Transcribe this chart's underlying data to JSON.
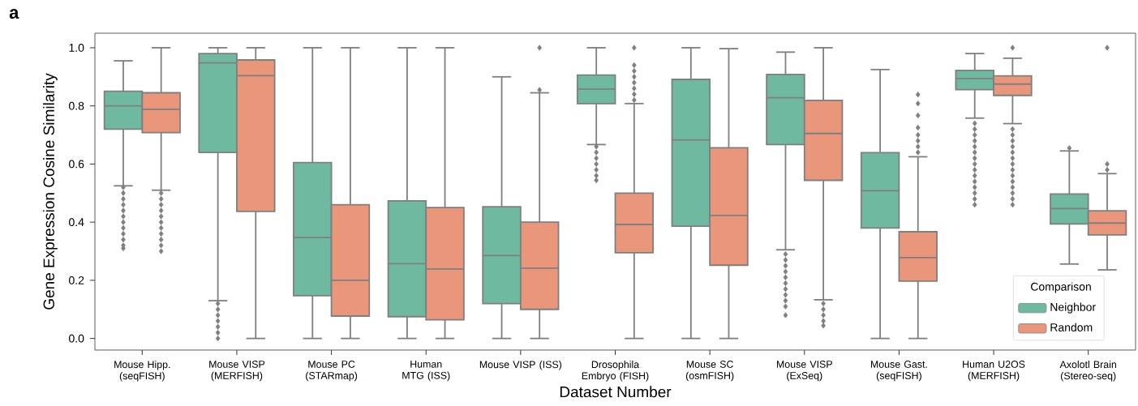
{
  "chart_data": {
    "type": "box",
    "xlabel": "Dataset Number",
    "ylabel": "Gene Expression Cosine Similarity",
    "annotations": [
      "a"
    ],
    "legend_title": "Comparison",
    "legend": "bottom right",
    "marker": "diamond",
    "categories": [
      "Mouse Hipp. (seqFISH)",
      "Mouse VISP (MERFISH)",
      "Mouse PC (STARmap)",
      "Human MTG (ISS)",
      "Mouse VISP (ISS)",
      "Drosophila Embryo (FISH)",
      "Mouse SC (osmFISH)",
      "Mouse VISP (ExSeq)",
      "Mouse Gast. (seqFISH)",
      "Human U2OS (MERFISH)",
      "Axolotl Brain (Stereo-seq)"
    ],
    "ylim": [
      -0.04,
      1.05
    ],
    "yticks": [
      {
        "value": 0,
        "label": "0.0"
      },
      {
        "value": 0.2,
        "label": "0.2"
      },
      {
        "value": 0.4,
        "label": "0.4"
      },
      {
        "value": 0.6,
        "label": "0.6"
      },
      {
        "value": 0.8,
        "label": "0.8"
      },
      {
        "value": 1,
        "label": "1.0"
      }
    ],
    "series": [
      {
        "name": "Neighbor",
        "color": "#6fb9a0",
        "boxes": [
          {
            "low": 0.525,
            "q1": 0.72,
            "median": 0.8,
            "q3": 0.85,
            "high": 0.955,
            "outliers": [
              0.52,
              0.5,
              0.48,
              0.46,
              0.44,
              0.42,
              0.4,
              0.38,
              0.36,
              0.34,
              0.32,
              0.31
            ]
          },
          {
            "low": 0.13,
            "q1": 0.64,
            "median": 0.948,
            "q3": 0.98,
            "high": 1.0,
            "outliers": [
              0.12,
              0.1,
              0.08,
              0.06,
              0.04,
              0.02,
              0.0
            ]
          },
          {
            "low": 0.0,
            "q1": 0.147,
            "median": 0.347,
            "q3": 0.605,
            "high": 1.0
          },
          {
            "low": 0.0,
            "q1": 0.075,
            "median": 0.257,
            "q3": 0.473,
            "high": 1.0
          },
          {
            "low": 0.0,
            "q1": 0.12,
            "median": 0.285,
            "q3": 0.453,
            "high": 0.9
          },
          {
            "low": 0.667,
            "q1": 0.808,
            "median": 0.858,
            "q3": 0.906,
            "high": 1.0,
            "outliers": [
              0.66,
              0.64,
              0.62,
              0.6,
              0.58,
              0.56,
              0.544
            ]
          },
          {
            "low": 0.0,
            "q1": 0.386,
            "median": 0.683,
            "q3": 0.891,
            "high": 1.0
          },
          {
            "low": 0.305,
            "q1": 0.667,
            "median": 0.828,
            "q3": 0.908,
            "high": 0.985,
            "outliers": [
              0.29,
              0.27,
              0.25,
              0.23,
              0.21,
              0.19,
              0.17,
              0.15,
              0.13,
              0.11,
              0.08
            ]
          },
          {
            "low": 0.0,
            "q1": 0.38,
            "median": 0.508,
            "q3": 0.639,
            "high": 0.925
          },
          {
            "low": 0.758,
            "q1": 0.856,
            "median": 0.894,
            "q3": 0.922,
            "high": 0.98,
            "outliers": [
              0.74,
              0.72,
              0.7,
              0.68,
              0.66,
              0.64,
              0.62,
              0.6,
              0.58,
              0.56,
              0.54,
              0.52,
              0.5,
              0.48,
              0.46
            ]
          },
          {
            "low": 0.256,
            "q1": 0.394,
            "median": 0.447,
            "q3": 0.497,
            "high": 0.645,
            "outliers": [
              0.655
            ]
          }
        ]
      },
      {
        "name": "Random",
        "color": "#e9967a",
        "boxes": [
          {
            "low": 0.51,
            "q1": 0.708,
            "median": 0.788,
            "q3": 0.845,
            "high": 1.0,
            "outliers": [
              0.5,
              0.48,
              0.46,
              0.44,
              0.42,
              0.4,
              0.38,
              0.36,
              0.34,
              0.32,
              0.3
            ]
          },
          {
            "low": 0.0,
            "q1": 0.437,
            "median": 0.904,
            "q3": 0.958,
            "high": 1.0
          },
          {
            "low": 0.0,
            "q1": 0.077,
            "median": 0.2,
            "q3": 0.46,
            "high": 1.0
          },
          {
            "low": 0.0,
            "q1": 0.064,
            "median": 0.239,
            "q3": 0.45,
            "high": 1.0
          },
          {
            "low": 0.0,
            "q1": 0.1,
            "median": 0.242,
            "q3": 0.4,
            "high": 0.845,
            "outliers": [
              0.855,
              1.0
            ]
          },
          {
            "low": 0.0,
            "q1": 0.295,
            "median": 0.392,
            "q3": 0.5,
            "high": 0.808,
            "outliers": [
              0.82,
              0.84,
              0.86,
              0.88,
              0.9,
              0.92,
              0.94,
              1.0
            ]
          },
          {
            "low": 0.0,
            "q1": 0.252,
            "median": 0.423,
            "q3": 0.656,
            "high": 0.997
          },
          {
            "low": 0.133,
            "q1": 0.544,
            "median": 0.705,
            "q3": 0.819,
            "high": 1.0,
            "outliers": [
              0.12,
              0.1,
              0.08,
              0.06,
              0.044
            ]
          },
          {
            "low": 0.0,
            "q1": 0.197,
            "median": 0.278,
            "q3": 0.367,
            "high": 0.625,
            "outliers": [
              0.64,
              0.66,
              0.68,
              0.7,
              0.725,
              0.767,
              0.808,
              0.839
            ]
          },
          {
            "low": 0.739,
            "q1": 0.836,
            "median": 0.875,
            "q3": 0.903,
            "high": 0.964,
            "outliers": [
              1.0,
              0.72,
              0.7,
              0.68,
              0.66,
              0.64,
              0.62,
              0.6,
              0.58,
              0.56,
              0.54,
              0.52,
              0.5,
              0.48,
              0.46
            ]
          },
          {
            "low": 0.236,
            "q1": 0.356,
            "median": 0.397,
            "q3": 0.439,
            "high": 0.567,
            "outliers": [
              0.58,
              0.6,
              1.0
            ]
          }
        ]
      }
    ]
  }
}
